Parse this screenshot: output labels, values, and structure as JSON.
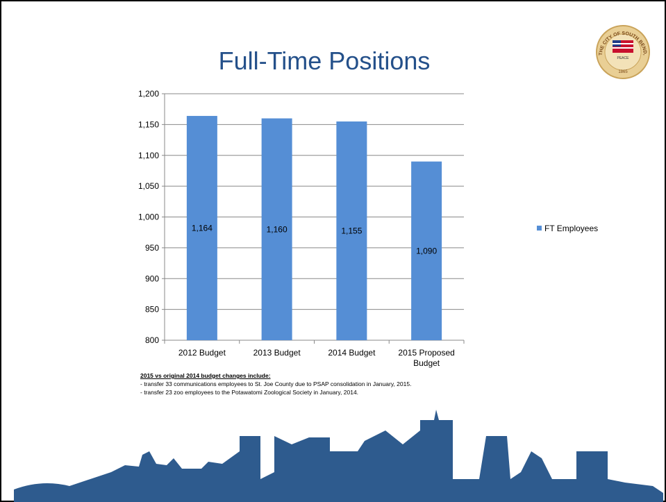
{
  "chart_data": {
    "type": "bar",
    "title": "Full-Time Positions",
    "categories": [
      "2012 Budget",
      "2013 Budget",
      "2014 Budget",
      "2015 Proposed Budget"
    ],
    "series": [
      {
        "name": "FT Employees",
        "color": "#558ed5",
        "values": [
          1164,
          1160,
          1155,
          1090
        ],
        "value_labels": [
          "1,164",
          "1,160",
          "1,155",
          "1,090"
        ]
      }
    ],
    "ylim": [
      800,
      1200
    ],
    "yticks": [
      800,
      850,
      900,
      950,
      {
        "value": 1000,
        "label": "1,000"
      },
      {
        "value": 1050,
        "label": "1,050"
      },
      {
        "value": 1100,
        "label": "1,100"
      },
      {
        "value": 1150,
        "label": "1,150"
      },
      {
        "value": 1200,
        "label": "1,200"
      }
    ],
    "grid": true,
    "legend": "right"
  },
  "notes": {
    "heading": "2015 vs original 2014 budget changes include:",
    "items": [
      " - transfer 33 communications employees to St. Joe County due to PSAP consolidation in January, 2015.",
      " - transfer 23 zoo employees to the Potawatomi Zoological Society in January, 2014."
    ]
  },
  "seal": {
    "ring": "THE CITY OF SOUTH BEND, INDIANA",
    "motto": "PEACE",
    "year": "1865"
  }
}
